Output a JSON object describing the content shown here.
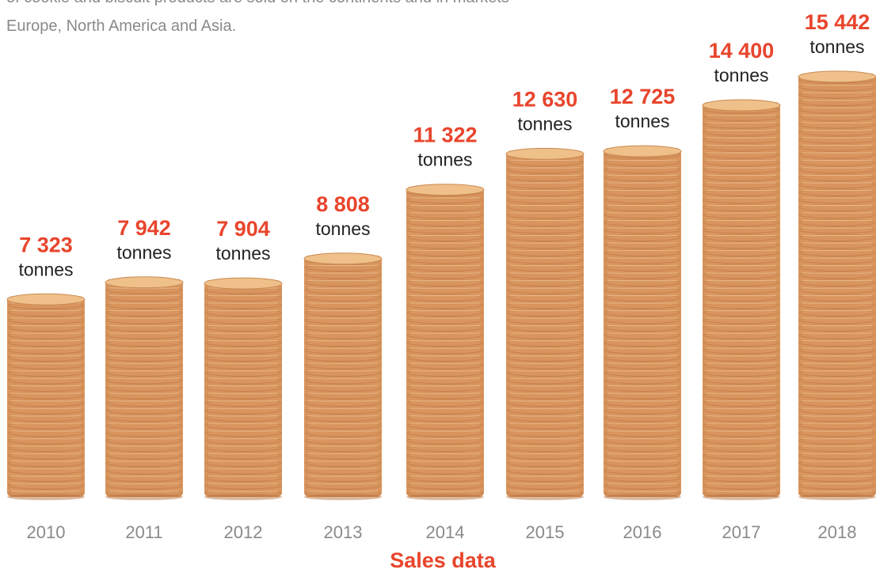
{
  "intro": {
    "line1_partial": "of cookie and biscuit products are sold on the continents and in markets",
    "line2": "Europe, North America and Asia."
  },
  "colors": {
    "accent": "#e8452c",
    "cookie_edge": "#d9955e",
    "cookie_top": "#efc08a",
    "muted_text": "#8a8a8a"
  },
  "chart_data": {
    "type": "bar",
    "title": "Sales data",
    "xlabel": "",
    "ylabel": "",
    "unit": "tonnes",
    "categories": [
      "2010",
      "2011",
      "2012",
      "2013",
      "2014",
      "2015",
      "2016",
      "2017",
      "2018"
    ],
    "values": [
      7323,
      7942,
      7904,
      8808,
      11322,
      12630,
      12725,
      14400,
      15442
    ],
    "value_labels": [
      "7 323",
      "7 942",
      "7 904",
      "8 808",
      "11 322",
      "12 630",
      "12 725",
      "14 400",
      "15 442"
    ],
    "ylim": [
      0,
      16000
    ],
    "grid": false,
    "legend": "none",
    "bar_style": "stacked cookie columns"
  }
}
